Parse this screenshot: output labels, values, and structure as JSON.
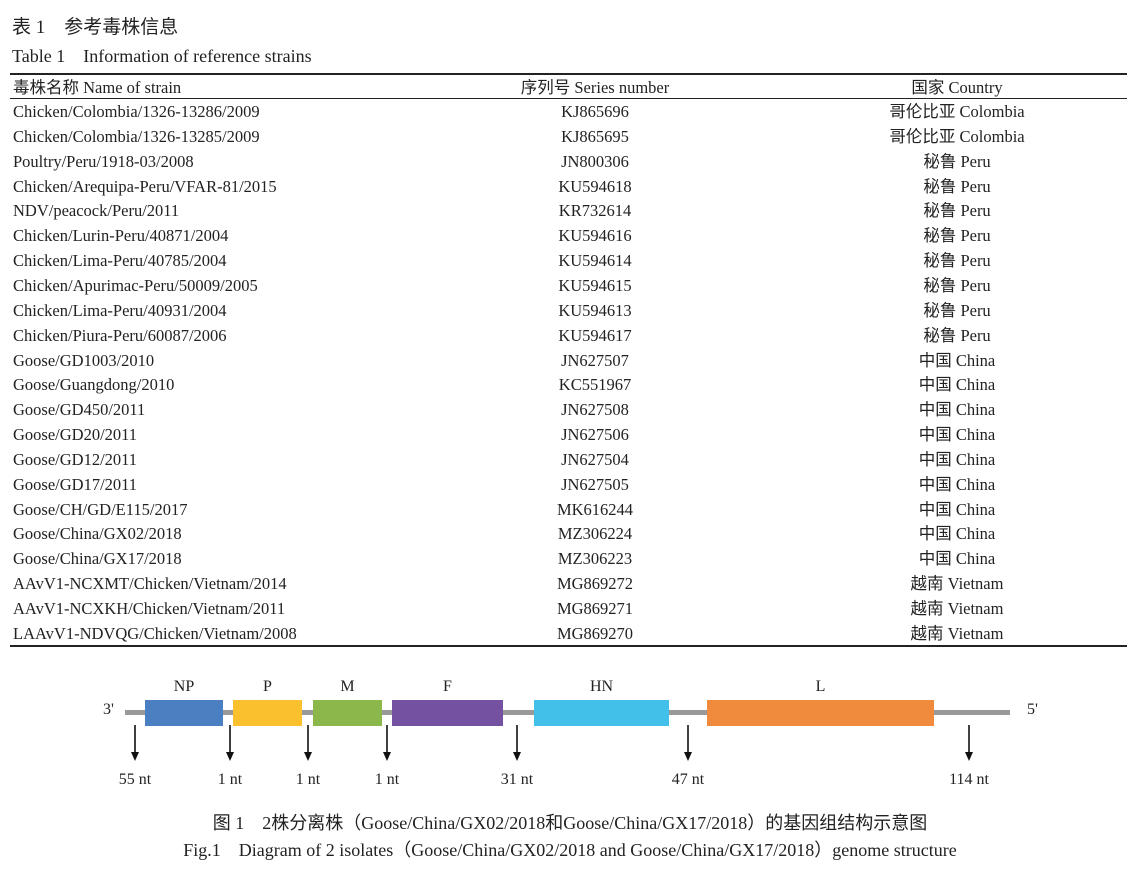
{
  "table": {
    "title_cn": "表 1　参考毒株信息",
    "title_en": "Table 1　Information of reference strains",
    "headers": [
      "毒株名称 Name of strain",
      "序列号 Series number",
      "国家 Country"
    ],
    "rows": [
      [
        "Chicken/Colombia/1326-13286/2009",
        "KJ865696",
        "哥伦比亚 Colombia"
      ],
      [
        "Chicken/Colombia/1326-13285/2009",
        "KJ865695",
        "哥伦比亚 Colombia"
      ],
      [
        "Poultry/Peru/1918-03/2008",
        "JN800306",
        "秘鲁 Peru"
      ],
      [
        "Chicken/Arequipa-Peru/VFAR-81/2015",
        "KU594618",
        "秘鲁 Peru"
      ],
      [
        "NDV/peacock/Peru/2011",
        "KR732614",
        "秘鲁 Peru"
      ],
      [
        "Chicken/Lurin-Peru/40871/2004",
        "KU594616",
        "秘鲁 Peru"
      ],
      [
        "Chicken/Lima-Peru/40785/2004",
        "KU594614",
        "秘鲁 Peru"
      ],
      [
        "Chicken/Apurimac-Peru/50009/2005",
        "KU594615",
        "秘鲁 Peru"
      ],
      [
        "Chicken/Lima-Peru/40931/2004",
        "KU594613",
        "秘鲁 Peru"
      ],
      [
        "Chicken/Piura-Peru/60087/2006",
        "KU594617",
        "秘鲁 Peru"
      ],
      [
        "Goose/GD1003/2010",
        "JN627507",
        "中国 China"
      ],
      [
        "Goose/Guangdong/2010",
        "KC551967",
        "中国 China"
      ],
      [
        "Goose/GD450/2011",
        "JN627508",
        "中国 China"
      ],
      [
        "Goose/GD20/2011",
        "JN627506",
        "中国 China"
      ],
      [
        "Goose/GD12/2011",
        "JN627504",
        "中国 China"
      ],
      [
        "Goose/GD17/2011",
        "JN627505",
        "中国 China"
      ],
      [
        "Goose/CH/GD/E115/2017",
        "MK616244",
        "中国 China"
      ],
      [
        "Goose/China/GX02/2018",
        "MZ306224",
        "中国 China"
      ],
      [
        "Goose/China/GX17/2018",
        "MZ306223",
        "中国 China"
      ],
      [
        "AAvV1-NCXMT/Chicken/Vietnam/2014",
        "MG869272",
        "越南 Vietnam"
      ],
      [
        "AAvV1-NCXKH/Chicken/Vietnam/2011",
        "MG869271",
        "越南 Vietnam"
      ],
      [
        "LAAvV1-NDVQG/Chicken/Vietnam/2008",
        "MG869270",
        "越南 Vietnam"
      ]
    ]
  },
  "figure": {
    "end_left": "3'",
    "end_right": "5'",
    "genes": [
      {
        "name": "NP",
        "color": "#4a7fc1"
      },
      {
        "name": "P",
        "color": "#fbc02d"
      },
      {
        "name": "M",
        "color": "#8cb84b"
      },
      {
        "name": "F",
        "color": "#7452a1"
      },
      {
        "name": "HN",
        "color": "#43c0e9"
      },
      {
        "name": "L",
        "color": "#f08a3c"
      }
    ],
    "intergenic": [
      "55 nt",
      "1 nt",
      "1 nt",
      "1 nt",
      "31 nt",
      "47 nt",
      "114 nt"
    ],
    "caption_cn": "图 1　2株分离株（Goose/China/GX02/2018和Goose/China/GX17/2018）的基因组结构示意图",
    "caption_en": "Fig.1　Diagram of 2 isolates（Goose/China/GX02/2018 and Goose/China/GX17/2018）genome structure"
  }
}
